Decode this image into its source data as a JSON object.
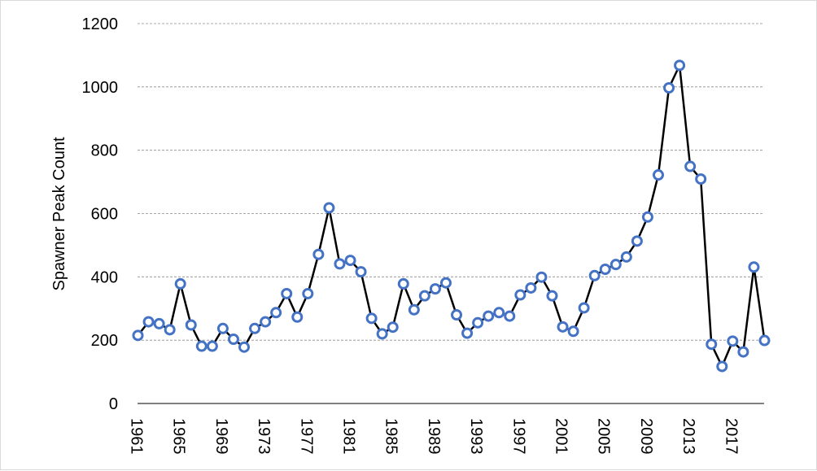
{
  "chart_data": {
    "type": "line",
    "title": "",
    "xlabel": "",
    "ylabel": "Spawner Peak Count",
    "ylim": [
      0,
      1200
    ],
    "yticks": [
      0,
      200,
      400,
      600,
      800,
      1000,
      1200
    ],
    "xticks": [
      1961,
      1965,
      1969,
      1973,
      1977,
      1981,
      1985,
      1989,
      1993,
      1997,
      2001,
      2005,
      2009,
      2013,
      2017
    ],
    "grid": true,
    "legend": "none",
    "colors": {
      "line": "#000000",
      "marker_edge": "#4472c4",
      "marker_fill": "#ffffff",
      "grid": "#8c8c8c"
    },
    "x": [
      1961,
      1962,
      1963,
      1964,
      1965,
      1966,
      1967,
      1968,
      1969,
      1970,
      1971,
      1972,
      1973,
      1974,
      1975,
      1976,
      1977,
      1978,
      1979,
      1980,
      1981,
      1982,
      1983,
      1984,
      1985,
      1986,
      1987,
      1988,
      1989,
      1990,
      1991,
      1992,
      1993,
      1994,
      1995,
      1996,
      1997,
      1998,
      1999,
      2000,
      2001,
      2002,
      2003,
      2004,
      2005,
      2006,
      2007,
      2008,
      2009,
      2010,
      2011,
      2012,
      2013,
      2014,
      2015,
      2016,
      2017,
      2018,
      2019,
      2020
    ],
    "series": [
      {
        "values": [
          215,
          258,
          252,
          233,
          378,
          248,
          181,
          181,
          237,
          203,
          178,
          237,
          258,
          287,
          347,
          273,
          347,
          471,
          618,
          441,
          452,
          416,
          269,
          220,
          241,
          378,
          296,
          340,
          362,
          381,
          280,
          222,
          255,
          276,
          287,
          276,
          343,
          365,
          399,
          340,
          242,
          228,
          302,
          404,
          424,
          439,
          463,
          513,
          589,
          722,
          997,
          1068,
          749,
          709,
          187,
          117,
          197,
          163,
          431,
          199
        ]
      }
    ]
  }
}
